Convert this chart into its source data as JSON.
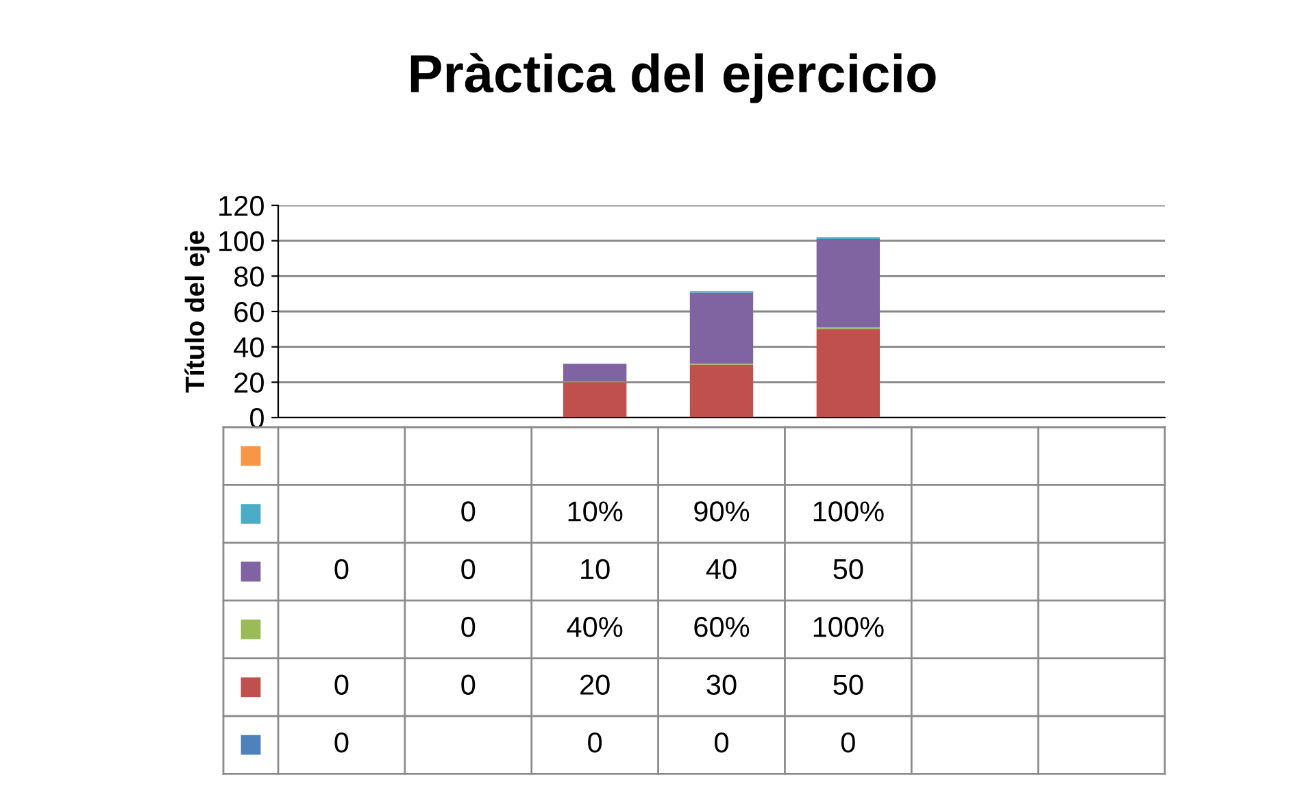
{
  "chart_data": {
    "type": "bar",
    "title": "Pràctica del ejercicio",
    "ylabel": "Título del eje",
    "categories": [
      null,
      null,
      null,
      null,
      null,
      null,
      null
    ],
    "stacked": true,
    "ylim": [
      0,
      120
    ],
    "yticks": [
      0,
      20,
      40,
      60,
      80,
      100,
      120
    ],
    "grid": "y",
    "legend": false,
    "series": [
      {
        "color": "#4f81bd",
        "values": [
          0,
          null,
          0,
          0,
          0,
          null,
          null
        ],
        "value_labels": [
          "0",
          null,
          "0",
          "0",
          "0",
          null,
          null
        ]
      },
      {
        "color": "#c0504d",
        "values": [
          0,
          0,
          20,
          30,
          50,
          null,
          null
        ],
        "value_labels": [
          "0",
          "0",
          "20",
          "30",
          "50",
          null,
          null
        ]
      },
      {
        "color": "#9bbb59",
        "values": [
          null,
          0,
          0.4,
          0.6,
          1,
          null,
          null
        ],
        "value_labels": [
          null,
          "0",
          "40%",
          "60%",
          "100%",
          null,
          null
        ]
      },
      {
        "color": "#8064a2",
        "values": [
          0,
          0,
          10,
          40,
          50,
          null,
          null
        ],
        "value_labels": [
          "0",
          "0",
          "10",
          "40",
          "50",
          null,
          null
        ]
      },
      {
        "color": "#4bacc6",
        "values": [
          null,
          0,
          0.1,
          0.9,
          1,
          null,
          null
        ],
        "value_labels": [
          null,
          "0",
          "10%",
          "90%",
          "100%",
          null,
          null
        ]
      },
      {
        "color": "#f79646",
        "values": [
          null,
          null,
          null,
          null,
          null,
          null,
          null
        ],
        "value_labels": [
          null,
          null,
          null,
          null,
          null,
          null,
          null
        ]
      }
    ]
  }
}
